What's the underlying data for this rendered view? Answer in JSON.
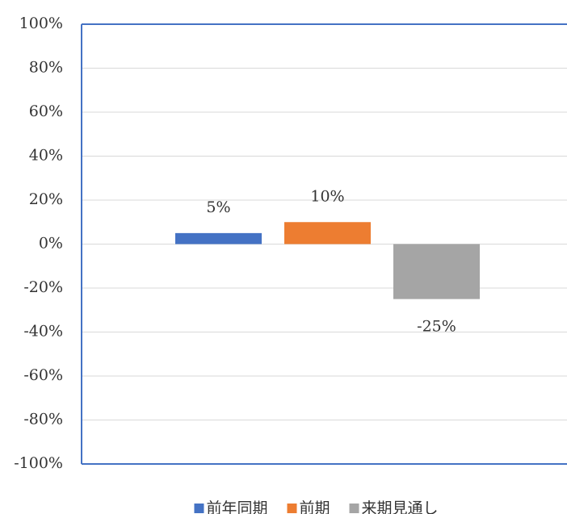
{
  "chart_data": {
    "type": "bar",
    "categories": [
      null
    ],
    "series": [
      {
        "name": "前年同期",
        "color": "#4472c4",
        "values": [
          5
        ],
        "value_labels": [
          "5%"
        ]
      },
      {
        "name": "前期",
        "color": "#ed7d31",
        "values": [
          10
        ],
        "value_labels": [
          "10%"
        ]
      },
      {
        "name": "来期見通し",
        "color": "#a5a5a5",
        "values": [
          -25
        ],
        "value_labels": [
          "-25%"
        ]
      }
    ],
    "ylim": [
      -100,
      100
    ],
    "yticks": [
      {
        "value": -100,
        "label": "-100%"
      },
      {
        "value": -80,
        "label": "-80%"
      },
      {
        "value": -60,
        "label": "-60%"
      },
      {
        "value": -40,
        "label": "-40%"
      },
      {
        "value": -20,
        "label": "-20%"
      },
      {
        "value": 0,
        "label": "0%"
      },
      {
        "value": 20,
        "label": "20%"
      },
      {
        "value": 40,
        "label": "40%"
      },
      {
        "value": 60,
        "label": "60%"
      },
      {
        "value": 80,
        "label": "80%"
      },
      {
        "value": 100,
        "label": "100%"
      }
    ],
    "grid": true,
    "legend": "bottom"
  }
}
